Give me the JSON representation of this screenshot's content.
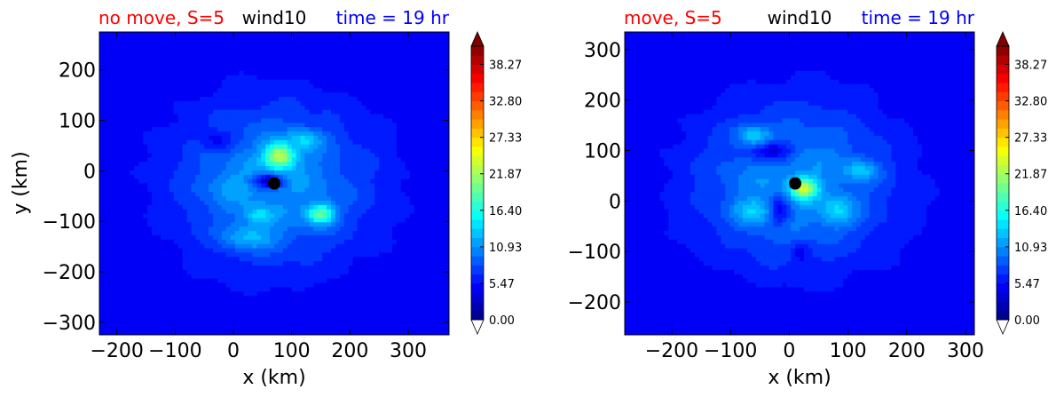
{
  "chart_data": [
    {
      "type": "heatmap",
      "title_left": "no move, S=5",
      "title_center": "wind10",
      "title_right": "time = 19 hr",
      "xlabel": "x (km)",
      "ylabel": "y (km)",
      "xlim": [
        -230,
        370
      ],
      "ylim": [
        -325,
        275
      ],
      "xticks": [
        "−200",
        "−100",
        "0",
        "100",
        "200",
        "300"
      ],
      "xtick_values": [
        -200,
        -100,
        0,
        100,
        200,
        300
      ],
      "yticks": [
        "−300",
        "−200",
        "−100",
        "0",
        "100",
        "200"
      ],
      "ytick_values": [
        -300,
        -200,
        -100,
        0,
        100,
        200
      ],
      "storm_center": {
        "x": 70,
        "y": -25
      },
      "features": [
        {
          "x": 80,
          "y": 30,
          "value": 24,
          "sx": 18,
          "sy": 18
        },
        {
          "x": 150,
          "y": -85,
          "value": 20,
          "sx": 16,
          "sy": 14
        },
        {
          "x": 45,
          "y": -90,
          "value": 15,
          "sx": 15,
          "sy": 13
        },
        {
          "x": 120,
          "y": 60,
          "value": 14,
          "sx": 20,
          "sy": 14
        },
        {
          "x": 0,
          "y": -30,
          "value": 12,
          "sx": 25,
          "sy": 18
        },
        {
          "x": 60,
          "y": -20,
          "value": 3,
          "sx": 18,
          "sy": 10
        },
        {
          "x": -30,
          "y": 60,
          "value": 5,
          "sx": 20,
          "sy": 14
        },
        {
          "x": 30,
          "y": -130,
          "value": 13,
          "sx": 30,
          "sy": 18
        }
      ]
    },
    {
      "type": "heatmap",
      "title_left": "move, S=5",
      "title_center": "wind10",
      "title_right": "time = 19 hr",
      "xlabel": "x (km)",
      "ylabel": "",
      "xlim": [
        -280,
        315
      ],
      "ylim": [
        -265,
        335
      ],
      "xticks": [
        "−200",
        "−100",
        "0",
        "100",
        "200",
        "300"
      ],
      "xtick_values": [
        -200,
        -100,
        0,
        100,
        200,
        300
      ],
      "yticks": [
        "−200",
        "−100",
        "0",
        "100",
        "200",
        "300"
      ],
      "ytick_values": [
        -200,
        -100,
        0,
        100,
        200,
        300
      ],
      "storm_center": {
        "x": 10,
        "y": 35
      },
      "features": [
        {
          "x": 25,
          "y": 25,
          "value": 24,
          "sx": 15,
          "sy": 14
        },
        {
          "x": -30,
          "y": 100,
          "value": 3,
          "sx": 25,
          "sy": 14
        },
        {
          "x": -20,
          "y": -20,
          "value": 4,
          "sx": 14,
          "sy": 20
        },
        {
          "x": 20,
          "y": -100,
          "value": 5,
          "sx": 10,
          "sy": 15
        },
        {
          "x": 80,
          "y": -20,
          "value": 14,
          "sx": 20,
          "sy": 20
        },
        {
          "x": -60,
          "y": -20,
          "value": 14,
          "sx": 22,
          "sy": 18
        },
        {
          "x": -60,
          "y": 130,
          "value": 13,
          "sx": 20,
          "sy": 14
        },
        {
          "x": 120,
          "y": 60,
          "value": 13,
          "sx": 20,
          "sy": 14
        }
      ]
    }
  ],
  "colorbar": {
    "min": 0,
    "max": 41,
    "tick_values": [
      0,
      5.47,
      10.93,
      16.4,
      21.87,
      27.33,
      32.8,
      38.27
    ],
    "tick_labels": [
      "0.00",
      "5.47",
      "10.93",
      "16.40",
      "21.87",
      "27.33",
      "32.80",
      "38.27"
    ]
  },
  "colors": {
    "title_left": "#ff0000",
    "title_center": "#000000",
    "title_right": "#0000ff",
    "storm_marker": "#000000"
  }
}
